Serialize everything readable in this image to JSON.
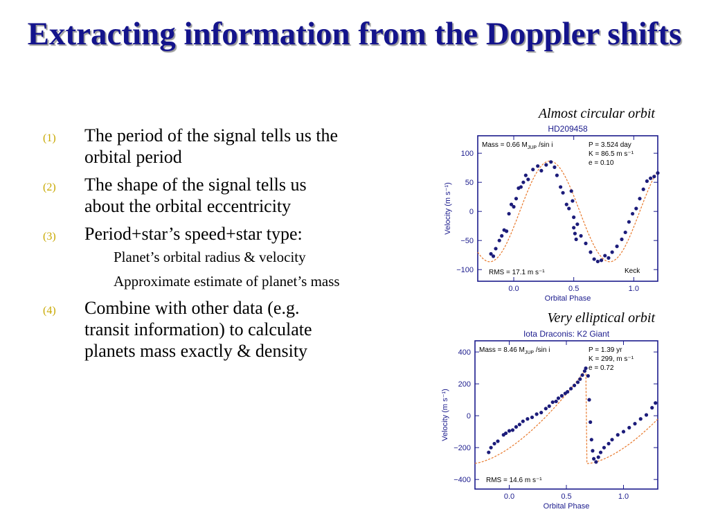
{
  "title": "Extracting information from the Doppler shifts",
  "bullets": [
    {
      "num": "(1)",
      "text": "The period of the signal tells us the orbital period"
    },
    {
      "num": "(2)",
      "text": "The shape of the signal tells us about the orbital eccentricity"
    },
    {
      "num": "(3)",
      "text": "Period+star’s speed+star type:",
      "sub": [
        "Planet’s orbital radius & velocity",
        "Approximate estimate of planet’s mass"
      ]
    },
    {
      "num": "(4)",
      "text": "Combine with other data (e.g. transit information) to calculate planets mass exactly & density"
    }
  ],
  "colors": {
    "title": "#14148c",
    "plot_axis": "#1a1a8c",
    "fit_line": "#e8782a",
    "numbering": "#c8a800"
  },
  "chart_data": [
    {
      "type": "scatter",
      "caption": "Almost circular orbit",
      "title": "HD209458",
      "xlabel": "Orbital Phase",
      "ylabel": "Velocity (m s⁻¹)",
      "xlim": [
        -0.3,
        1.2
      ],
      "ylim": [
        -120,
        130
      ],
      "xticks": [
        "0.0",
        "0.5",
        "1.0"
      ],
      "xtick_values": [
        0.0,
        0.5,
        1.0
      ],
      "yticks": [
        "100",
        "50",
        "0",
        "−50",
        "−100"
      ],
      "ytick_values": [
        100,
        50,
        0,
        -50,
        -100
      ],
      "annotations": {
        "mass": "Mass = 0.66 M",
        "mass_sub": "JUP",
        "mass_tail": " /sin i",
        "params": [
          "P = 3.524 day",
          "K = 86.5 m s⁻¹",
          "e = 0.10"
        ],
        "rms": "RMS = 17.1 m s⁻¹",
        "telescope": "Keck"
      },
      "fit": {
        "kind": "sinusoid",
        "K": 86.5,
        "peak_phase": 0.3
      },
      "points": [
        [
          -0.19,
          -73
        ],
        [
          -0.17,
          -77
        ],
        [
          -0.15,
          -64
        ],
        [
          -0.12,
          -50
        ],
        [
          -0.1,
          -42
        ],
        [
          -0.08,
          -32
        ],
        [
          -0.06,
          -34
        ],
        [
          -0.04,
          -4
        ],
        [
          -0.02,
          12
        ],
        [
          0.0,
          8
        ],
        [
          0.02,
          22
        ],
        [
          0.04,
          40
        ],
        [
          0.06,
          42
        ],
        [
          0.08,
          50
        ],
        [
          0.1,
          62
        ],
        [
          0.12,
          55
        ],
        [
          0.16,
          72
        ],
        [
          0.2,
          78
        ],
        [
          0.23,
          70
        ],
        [
          0.27,
          80
        ],
        [
          0.31,
          85
        ],
        [
          0.34,
          76
        ],
        [
          0.36,
          62
        ],
        [
          0.39,
          42
        ],
        [
          0.41,
          32
        ],
        [
          0.44,
          12
        ],
        [
          0.46,
          5
        ],
        [
          0.48,
          35
        ],
        [
          0.49,
          18
        ],
        [
          0.5,
          -10
        ],
        [
          0.5,
          -28
        ],
        [
          0.51,
          -38
        ],
        [
          0.52,
          -48
        ],
        [
          0.53,
          -22
        ],
        [
          0.56,
          -42
        ],
        [
          0.6,
          -55
        ],
        [
          0.64,
          -70
        ],
        [
          0.67,
          -82
        ],
        [
          0.7,
          -86
        ],
        [
          0.73,
          -84
        ],
        [
          0.76,
          -76
        ],
        [
          0.79,
          -80
        ],
        [
          0.82,
          -70
        ],
        [
          0.86,
          -60
        ],
        [
          0.9,
          -48
        ],
        [
          0.93,
          -36
        ],
        [
          0.96,
          -18
        ],
        [
          0.99,
          -4
        ],
        [
          1.02,
          5
        ],
        [
          1.05,
          22
        ],
        [
          1.08,
          38
        ],
        [
          1.11,
          52
        ],
        [
          1.14,
          57
        ],
        [
          1.17,
          60
        ],
        [
          1.2,
          66
        ]
      ]
    },
    {
      "type": "scatter",
      "caption": "Very elliptical orbit",
      "title": "Iota Draconis: K2 Giant",
      "xlabel": "Orbital Phase",
      "ylabel": "Velocity (m s⁻¹)",
      "xlim": [
        -0.3,
        1.3
      ],
      "ylim": [
        -460,
        470
      ],
      "xticks": [
        "0.0",
        "0.5",
        "1.0"
      ],
      "xtick_values": [
        0.0,
        0.5,
        1.0
      ],
      "yticks": [
        "400",
        "200",
        "0",
        "−200",
        "−400"
      ],
      "ytick_values": [
        400,
        200,
        0,
        -200,
        -400
      ],
      "annotations": {
        "mass": "Mass = 8.46 M",
        "mass_sub": "JUP",
        "mass_tail": " /sin i",
        "params": [
          "P = 1.39 yr",
          "K = 299, m s⁻¹",
          "e = 0.72"
        ],
        "rms": "RMS = 14.6 m s⁻¹",
        "telescope": ""
      },
      "fit": {
        "kind": "eccentric",
        "max": 300,
        "min": -300,
        "jump_phase": 0.68
      },
      "points": [
        [
          -0.18,
          -230
        ],
        [
          -0.16,
          -200
        ],
        [
          -0.13,
          -175
        ],
        [
          -0.1,
          -160
        ],
        [
          -0.05,
          -120
        ],
        [
          -0.03,
          -110
        ],
        [
          0.0,
          -95
        ],
        [
          0.03,
          -90
        ],
        [
          0.06,
          -70
        ],
        [
          0.09,
          -55
        ],
        [
          0.12,
          -35
        ],
        [
          0.16,
          -20
        ],
        [
          0.2,
          -10
        ],
        [
          0.24,
          10
        ],
        [
          0.28,
          20
        ],
        [
          0.32,
          45
        ],
        [
          0.35,
          60
        ],
        [
          0.38,
          85
        ],
        [
          0.41,
          90
        ],
        [
          0.43,
          110
        ],
        [
          0.46,
          125
        ],
        [
          0.49,
          140
        ],
        [
          0.51,
          150
        ],
        [
          0.54,
          170
        ],
        [
          0.57,
          190
        ],
        [
          0.6,
          210
        ],
        [
          0.62,
          230
        ],
        [
          0.64,
          255
        ],
        [
          0.66,
          280
        ],
        [
          0.67,
          298
        ],
        [
          0.69,
          250
        ],
        [
          0.7,
          100
        ],
        [
          0.71,
          -40
        ],
        [
          0.72,
          -150
        ],
        [
          0.73,
          -220
        ],
        [
          0.74,
          -270
        ],
        [
          0.76,
          -290
        ],
        [
          0.78,
          -260
        ],
        [
          0.8,
          -230
        ],
        [
          0.83,
          -200
        ],
        [
          0.87,
          -175
        ],
        [
          0.9,
          -150
        ],
        [
          0.95,
          -120
        ],
        [
          1.0,
          -100
        ],
        [
          1.05,
          -75
        ],
        [
          1.1,
          -50
        ],
        [
          1.15,
          -20
        ],
        [
          1.2,
          5
        ],
        [
          1.25,
          50
        ],
        [
          1.28,
          80
        ]
      ]
    }
  ]
}
